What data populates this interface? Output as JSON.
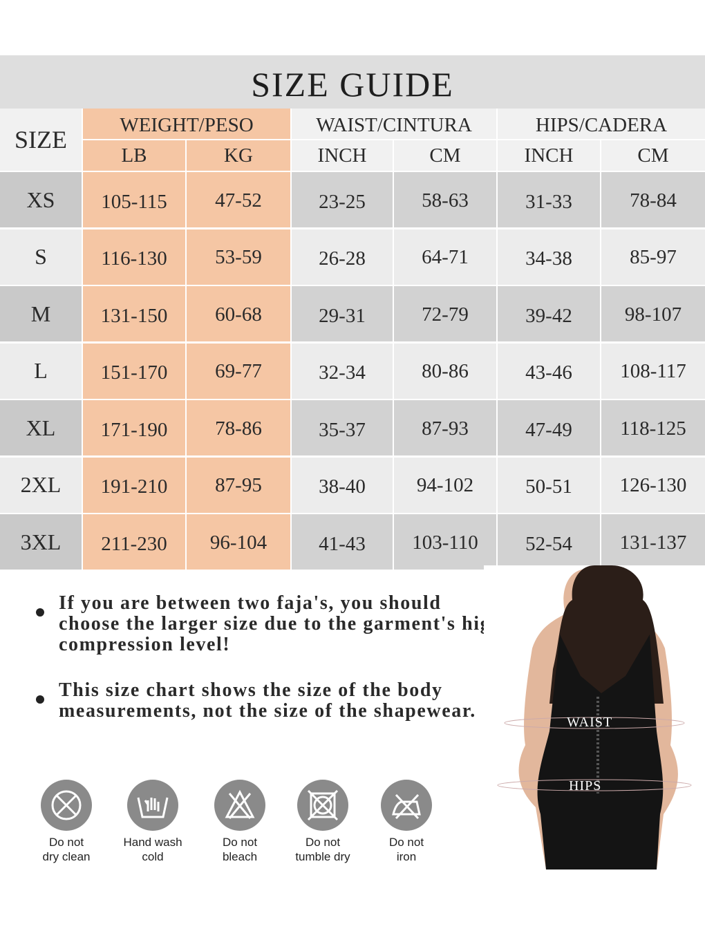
{
  "title": "SIZE GUIDE",
  "headers": {
    "size": "SIZE",
    "weight": "WEIGHT/PESO",
    "waist": "WAIST/CINTURA",
    "hips": "HIPS/CADERA",
    "sub": [
      "LB",
      "KG",
      "INCH",
      "CM",
      "INCH",
      "CM"
    ]
  },
  "rows": [
    {
      "size": "XS",
      "values": [
        "105-115",
        "47-52",
        "23-25",
        "58-63",
        "31-33",
        "78-84"
      ]
    },
    {
      "size": "S",
      "values": [
        "116-130",
        "53-59",
        "26-28",
        "64-71",
        "34-38",
        "85-97"
      ]
    },
    {
      "size": "M",
      "values": [
        "131-150",
        "60-68",
        "29-31",
        "72-79",
        "39-42",
        "98-107"
      ]
    },
    {
      "size": "L",
      "values": [
        "151-170",
        "69-77",
        "32-34",
        "80-86",
        "43-46",
        "108-117"
      ]
    },
    {
      "size": "XL",
      "values": [
        "171-190",
        "78-86",
        "35-37",
        "87-93",
        "47-49",
        "118-125"
      ]
    },
    {
      "size": "2XL",
      "values": [
        "191-210",
        "87-95",
        "38-40",
        "94-102",
        "50-51",
        "126-130"
      ]
    },
    {
      "size": "3XL",
      "values": [
        "211-230",
        "96-104",
        "41-43",
        "103-110",
        "52-54",
        "131-137"
      ]
    }
  ],
  "notes": [
    "If you are between two faja's, you should choose the larger size due to the garment's high compression level!",
    "This size chart shows the size of the body measurements, not the size of the shapewear."
  ],
  "care": [
    {
      "icon": "do-not-dry-clean-icon",
      "line1": "Do not",
      "line2": "dry clean"
    },
    {
      "icon": "hand-wash-cold-icon",
      "line1": "Hand wash",
      "line2": "cold"
    },
    {
      "icon": "do-not-bleach-icon",
      "line1": "Do not",
      "line2": "bleach"
    },
    {
      "icon": "do-not-tumble-dry-icon",
      "line1": "Do not",
      "line2": "tumble dry"
    },
    {
      "icon": "do-not-iron-icon",
      "line1": "Do not",
      "line2": "iron"
    }
  ],
  "model_labels": {
    "waist": "WAIST",
    "hips": "HIPS"
  },
  "colors": {
    "weight_columns": "#f5c6a4",
    "row_dark": "#d2d2d2",
    "row_light": "#ececec",
    "icon_bg": "#8a8a8a"
  }
}
